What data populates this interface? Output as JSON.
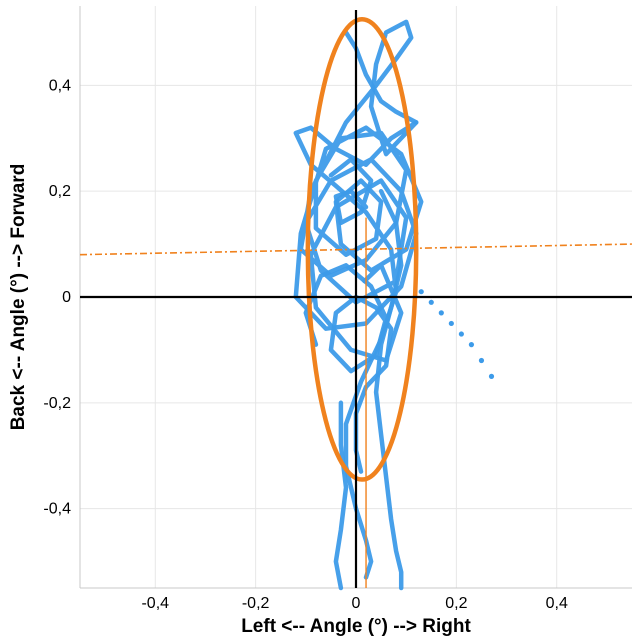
{
  "chart_data": {
    "type": "scatter",
    "xlabel": "Left <-- Angle (°) --> Right",
    "ylabel": "Back <-- Angle (°) --> Forward",
    "xlim": [
      -0.55,
      0.55
    ],
    "ylim": [
      -0.55,
      0.55
    ],
    "x_ticks": [
      -0.4,
      -0.2,
      0,
      0.2,
      0.4
    ],
    "x_tick_labels": [
      "-0,4",
      "-0,2",
      "0",
      "0,2",
      "0,4"
    ],
    "y_ticks": [
      -0.4,
      -0.2,
      0,
      0.2,
      0.4
    ],
    "y_tick_labels": [
      "-0,4",
      "-0,2",
      "0",
      "0,2",
      "0,4"
    ],
    "grid": true,
    "colors": {
      "trace": "#3d9be9",
      "ellipse": "#f0821e",
      "axis": "#000000",
      "grid": "#e6e6e6"
    },
    "series": [
      {
        "kind": "sway_trace",
        "points": [
          [
            0.017,
            0.03
          ],
          [
            0.05,
            0.06
          ],
          [
            0.09,
            -0.03
          ],
          [
            0.06,
            -0.12
          ],
          [
            -0.01,
            -0.1
          ],
          [
            -0.08,
            -0.02
          ],
          [
            -0.09,
            0.08
          ],
          [
            -0.04,
            0.17
          ],
          [
            0.05,
            0.22
          ],
          [
            0.1,
            0.15
          ],
          [
            0.08,
            0.03
          ],
          [
            0.0,
            -0.01
          ],
          [
            -0.07,
            0.05
          ],
          [
            -0.1,
            0.14
          ],
          [
            -0.05,
            0.22
          ],
          [
            0.03,
            0.26
          ],
          [
            0.09,
            0.2
          ],
          [
            0.12,
            0.12
          ],
          [
            0.09,
            0.02
          ],
          [
            0.02,
            -0.05
          ],
          [
            -0.06,
            -0.06
          ],
          [
            -0.12,
            0.0
          ],
          [
            -0.11,
            0.12
          ],
          [
            -0.06,
            0.28
          ],
          [
            0.02,
            0.32
          ],
          [
            0.09,
            0.27
          ],
          [
            0.13,
            0.18
          ],
          [
            0.1,
            0.09
          ],
          [
            0.03,
            0.05
          ],
          [
            -0.03,
            0.1
          ],
          [
            -0.04,
            0.18
          ],
          [
            0.01,
            0.22
          ],
          [
            0.05,
            0.18
          ],
          [
            0.04,
            0.11
          ],
          [
            -0.02,
            0.08
          ],
          [
            -0.08,
            0.13
          ],
          [
            -0.08,
            0.22
          ],
          [
            -0.03,
            0.3
          ],
          [
            0.05,
            0.31
          ],
          [
            0.1,
            0.24
          ],
          [
            0.08,
            0.14
          ],
          [
            0.02,
            0.07
          ],
          [
            -0.05,
            0.04
          ],
          [
            -0.11,
            0.09
          ],
          [
            -0.09,
            0.2
          ],
          [
            -0.02,
            0.33
          ],
          [
            0.04,
            0.4
          ],
          [
            0.08,
            0.45
          ],
          [
            0.11,
            0.49
          ],
          [
            0.1,
            0.52
          ],
          [
            0.06,
            0.5
          ],
          [
            0.04,
            0.44
          ],
          [
            0.03,
            0.36
          ],
          [
            0.06,
            0.27
          ],
          [
            0.12,
            0.33
          ],
          [
            0.07,
            0.3
          ],
          [
            0.02,
            0.25
          ],
          [
            -0.04,
            0.28
          ],
          [
            -0.09,
            0.32
          ],
          [
            -0.12,
            0.31
          ],
          [
            -0.09,
            0.25
          ],
          [
            -0.04,
            0.21
          ],
          [
            0.02,
            0.16
          ],
          [
            0.07,
            0.09
          ],
          [
            0.08,
            0.01
          ],
          [
            0.05,
            -0.08
          ],
          [
            0.01,
            -0.16
          ],
          [
            -0.02,
            -0.24
          ],
          [
            -0.02,
            -0.32
          ],
          [
            0.0,
            -0.4
          ],
          [
            0.02,
            -0.46
          ],
          [
            0.03,
            -0.5
          ],
          [
            0.02,
            -0.53
          ]
        ]
      },
      {
        "kind": "sway_trace",
        "points": [
          [
            -0.08,
            -0.09
          ],
          [
            -0.1,
            -0.03
          ],
          [
            -0.07,
            0.04
          ],
          [
            -0.02,
            0.06
          ],
          [
            0.03,
            0.02
          ],
          [
            0.06,
            -0.04
          ],
          [
            0.04,
            -0.11
          ],
          [
            -0.01,
            -0.14
          ],
          [
            -0.05,
            -0.1
          ],
          [
            -0.04,
            -0.03
          ],
          [
            0.0,
            0.0
          ],
          [
            0.04,
            -0.02
          ],
          [
            0.07,
            -0.06
          ],
          [
            0.06,
            -0.13
          ],
          [
            0.02,
            -0.17
          ],
          [
            0.0,
            -0.22
          ],
          [
            0.0,
            -0.29
          ],
          [
            0.01,
            -0.33
          ]
        ]
      },
      {
        "kind": "sway_trace",
        "points": [
          [
            -0.02,
            0.5
          ],
          [
            0.0,
            0.47
          ],
          [
            0.02,
            0.42
          ],
          [
            0.05,
            0.37
          ],
          [
            0.08,
            0.35
          ],
          [
            0.12,
            0.33
          ]
        ]
      },
      {
        "kind": "sway_trace",
        "points": [
          [
            0.05,
            0.2
          ],
          [
            0.08,
            0.14
          ],
          [
            0.09,
            0.06
          ],
          [
            0.07,
            -0.02
          ],
          [
            0.05,
            -0.09
          ],
          [
            0.04,
            -0.18
          ],
          [
            0.05,
            -0.26
          ],
          [
            0.06,
            -0.34
          ],
          [
            0.07,
            -0.42
          ],
          [
            0.08,
            -0.48
          ],
          [
            0.09,
            -0.52
          ],
          [
            0.09,
            -0.55
          ]
        ]
      },
      {
        "kind": "sway_trace",
        "points": [
          [
            -0.03,
            -0.2
          ],
          [
            -0.03,
            -0.28
          ],
          [
            -0.02,
            -0.36
          ],
          [
            -0.03,
            -0.44
          ],
          [
            -0.04,
            -0.5
          ],
          [
            -0.03,
            -0.55
          ]
        ]
      },
      {
        "kind": "sway_trace",
        "points": [
          [
            -0.05,
            0.23
          ],
          [
            -0.01,
            0.26
          ],
          [
            0.03,
            0.22
          ],
          [
            0.01,
            0.16
          ],
          [
            -0.03,
            0.14
          ],
          [
            -0.04,
            0.19
          ],
          [
            -0.01,
            0.2
          ],
          [
            0.02,
            0.17
          ]
        ]
      },
      {
        "kind": "trailing_dots",
        "points": [
          [
            0.13,
            0.01
          ],
          [
            0.15,
            -0.01
          ],
          [
            0.17,
            -0.03
          ],
          [
            0.19,
            -0.05
          ],
          [
            0.21,
            -0.07
          ],
          [
            0.23,
            -0.09
          ],
          [
            0.25,
            -0.12
          ],
          [
            0.27,
            -0.15
          ]
        ]
      },
      {
        "kind": "ellipse",
        "center": [
          0.012,
          0.09
        ],
        "semi_axis_x": 0.108,
        "semi_axis_y": 0.435
      },
      {
        "kind": "regression_line",
        "points": [
          [
            -0.55,
            0.08
          ],
          [
            0.55,
            0.1
          ]
        ]
      },
      {
        "kind": "vertical_line",
        "x": 0.02,
        "y_range": [
          -0.55,
          0.15
        ]
      }
    ]
  }
}
